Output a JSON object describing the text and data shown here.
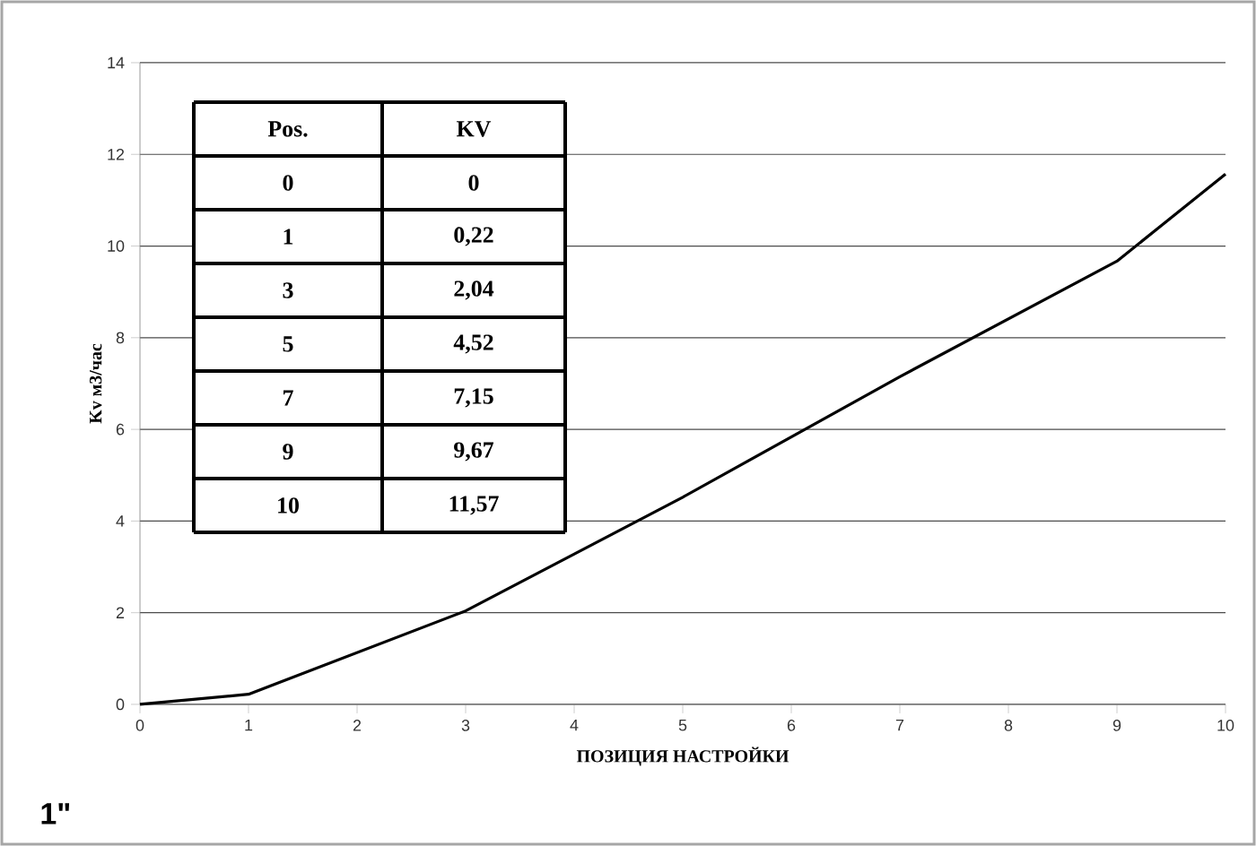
{
  "chart_data": [
    {
      "type": "line",
      "xlabel": "ПОЗИЦИЯ НАСТРОЙКИ",
      "ylabel": "Kv  м3/час",
      "x": [
        0,
        1,
        3,
        5,
        7,
        9,
        10
      ],
      "series": [
        {
          "color": "#000000",
          "values": [
            0,
            0.22,
            2.04,
            4.52,
            7.15,
            9.67,
            11.57
          ]
        }
      ],
      "xlim": [
        0,
        10
      ],
      "xticks": [
        0,
        1,
        2,
        3,
        4,
        5,
        6,
        7,
        8,
        9,
        10
      ],
      "ylim": [
        0,
        14
      ],
      "yticks": [
        0,
        2,
        4,
        6,
        8,
        10,
        12,
        14
      ],
      "grid": "y",
      "marker": "none",
      "line_style": "solid",
      "annotations": [
        "1\""
      ]
    },
    {
      "type": "other",
      "annotations": [
        "Pos.",
        "KV",
        "0",
        "0",
        "1",
        "0,22",
        "3",
        "2,04",
        "5",
        "4,52",
        "7",
        "7,15",
        "9",
        "9,67",
        "10",
        "11,57"
      ]
    }
  ]
}
